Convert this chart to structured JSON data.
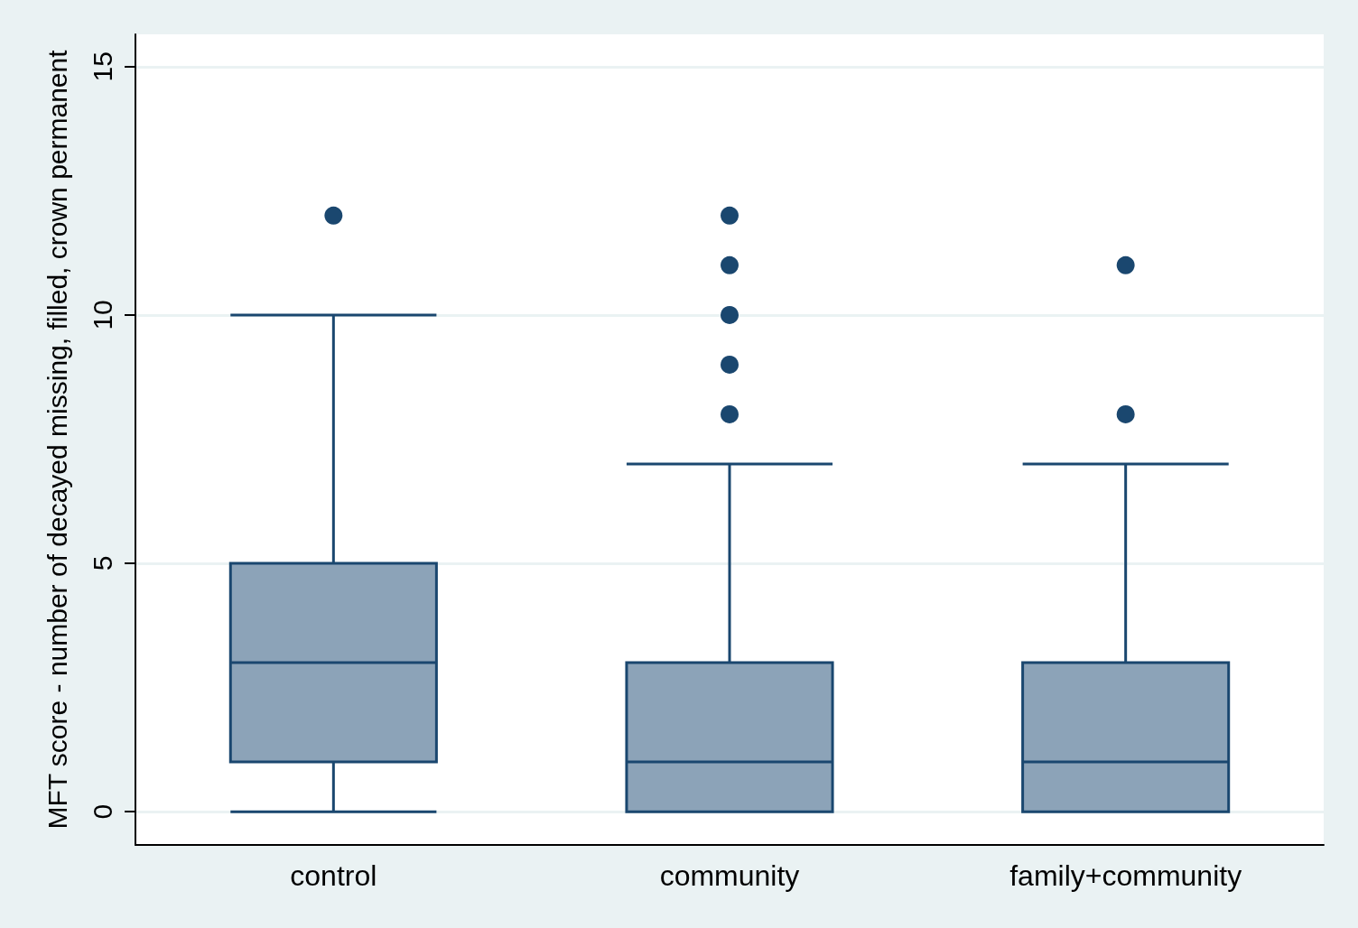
{
  "chart_data": {
    "type": "box",
    "ylabel": "MFT score - number of decayed missing, filled, crown permanent",
    "categories": [
      "control",
      "community",
      "family+community"
    ],
    "boxes": [
      {
        "low": 0,
        "q1": 1,
        "median": 3,
        "q3": 5,
        "high": 10,
        "outliers": [
          12
        ]
      },
      {
        "low": 0,
        "q1": 0,
        "median": 1,
        "q3": 3,
        "high": 7,
        "outliers": [
          8,
          9,
          10,
          11,
          12
        ]
      },
      {
        "low": 0,
        "q1": 0,
        "median": 1,
        "q3": 3,
        "high": 7,
        "outliers": [
          8,
          11
        ]
      }
    ],
    "color": "#8ca3b8",
    "ylim": [
      -0.67,
      15.65
    ],
    "yticks": [
      0,
      5,
      10,
      15
    ],
    "grid": "y"
  }
}
